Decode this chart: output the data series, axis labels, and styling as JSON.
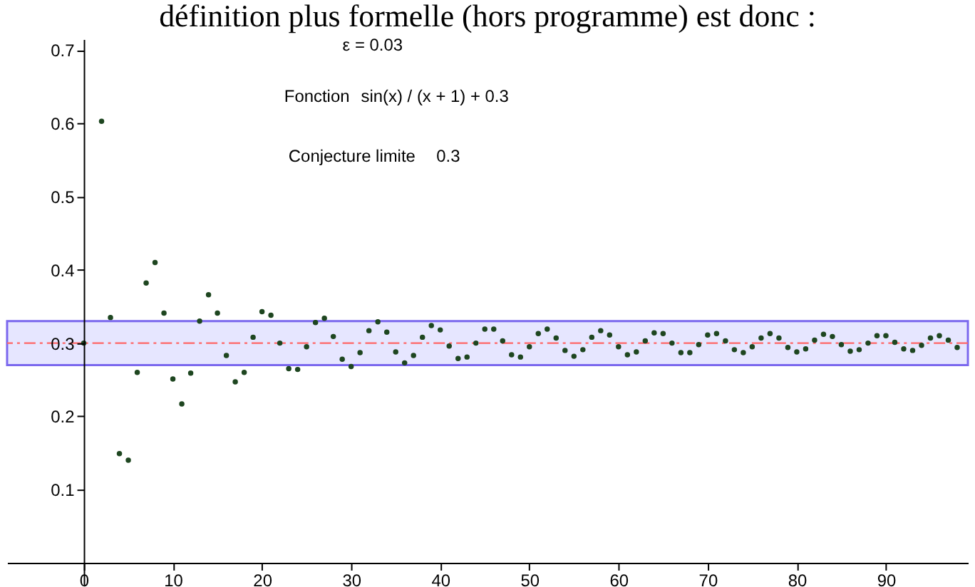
{
  "chart_data": {
    "type": "scatter",
    "title": "définition plus formelle (hors programme) est donc :",
    "annotations": [
      "ε = 0.03",
      "Fonction",
      "sin(x) / (x + 1) + 0.3",
      "Conjecture limite",
      "0.3"
    ],
    "x": [
      0,
      2,
      3,
      4,
      5,
      6,
      7,
      8,
      9,
      10,
      11,
      12,
      13,
      14,
      15,
      16,
      17,
      18,
      19,
      20,
      21,
      22,
      23,
      24,
      25,
      26,
      27,
      28,
      29,
      30,
      31,
      32,
      33,
      34,
      35,
      36,
      37,
      38,
      39,
      40,
      41,
      42,
      43,
      44,
      45,
      46,
      47,
      48,
      49,
      50,
      51,
      52,
      53,
      54,
      55,
      56,
      57,
      58,
      59,
      60,
      61,
      62,
      63,
      64,
      65,
      66,
      67,
      68,
      69,
      70,
      71,
      72,
      73,
      74,
      75,
      76,
      77,
      78,
      79,
      80,
      81,
      82,
      83,
      84,
      85,
      86,
      87,
      88,
      89,
      90,
      91,
      92,
      93,
      94,
      95,
      96,
      97,
      98
    ],
    "series": [
      {
        "color": "#1e4620",
        "values": [
          0.3,
          0.603,
          0.335,
          0.149,
          0.14,
          0.26,
          0.382,
          0.41,
          0.341,
          0.251,
          0.217,
          0.259,
          0.33,
          0.366,
          0.341,
          0.283,
          0.247,
          0.26,
          0.308,
          0.343,
          0.338,
          0.3,
          0.265,
          0.264,
          0.295,
          0.328,
          0.334,
          0.309,
          0.278,
          0.268,
          0.287,
          0.317,
          0.329,
          0.315,
          0.288,
          0.273,
          0.283,
          0.308,
          0.324,
          0.318,
          0.296,
          0.279,
          0.281,
          0.3,
          0.319,
          0.319,
          0.303,
          0.284,
          0.281,
          0.295,
          0.313,
          0.319,
          0.307,
          0.29,
          0.282,
          0.291,
          0.308,
          0.317,
          0.311,
          0.295,
          0.284,
          0.288,
          0.303,
          0.314,
          0.313,
          0.3,
          0.287,
          0.287,
          0.298,
          0.311,
          0.313,
          0.303,
          0.291,
          0.287,
          0.295,
          0.307,
          0.313,
          0.307,
          0.294,
          0.288,
          0.292,
          0.304,
          0.312,
          0.309,
          0.298,
          0.289,
          0.291,
          0.3,
          0.31,
          0.31,
          0.301,
          0.292,
          0.29,
          0.297,
          0.307,
          0.31,
          0.304,
          0.294
        ]
      }
    ],
    "xlim": [
      -8.6,
      99.2
    ],
    "ylim": [
      -0.03,
      0.715
    ],
    "xticks": [
      0,
      10,
      20,
      30,
      40,
      50,
      60,
      70,
      80,
      90
    ],
    "yticks": [
      0.1,
      0.2,
      0.3,
      0.4,
      0.5,
      0.6,
      0.7
    ],
    "bands": [
      {
        "axis": "y",
        "from": 0.27,
        "to": 0.33,
        "color": "#e6e6ff"
      }
    ],
    "ref_lines": [
      {
        "axis": "y",
        "value": 0.3,
        "color": "#ff6666",
        "line_style": "dashed"
      }
    ],
    "marker": "circle"
  }
}
